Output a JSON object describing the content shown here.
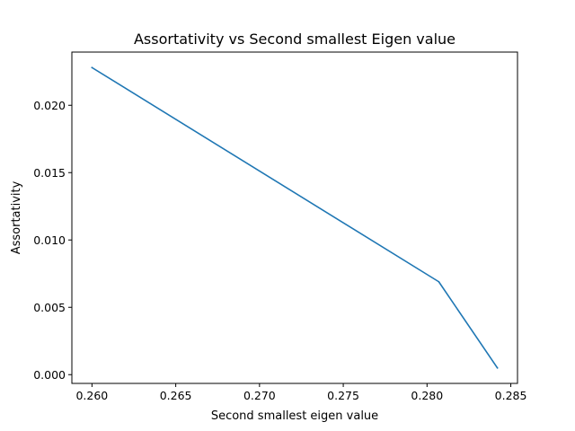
{
  "chart_data": {
    "type": "line",
    "title": "Assortativity vs Second smallest Eigen value",
    "xlabel": "Second smallest eigen value",
    "ylabel": "Assortativity",
    "xlim": [
      0.2588,
      0.2854
    ],
    "ylim": [
      -0.00065,
      0.02395
    ],
    "xticks": [
      0.26,
      0.265,
      0.27,
      0.275,
      0.28,
      0.285
    ],
    "xtick_labels": [
      "0.260",
      "0.265",
      "0.270",
      "0.275",
      "0.280",
      "0.285"
    ],
    "yticks": [
      0.0,
      0.005,
      0.01,
      0.015,
      0.02
    ],
    "ytick_labels": [
      "0.000",
      "0.005",
      "0.010",
      "0.015",
      "0.020"
    ],
    "grid": false,
    "series": [
      {
        "color": "#1f77b4",
        "x": [
          0.26,
          0.2807,
          0.2842
        ],
        "y": [
          0.0228,
          0.0069,
          0.0005
        ]
      }
    ]
  }
}
